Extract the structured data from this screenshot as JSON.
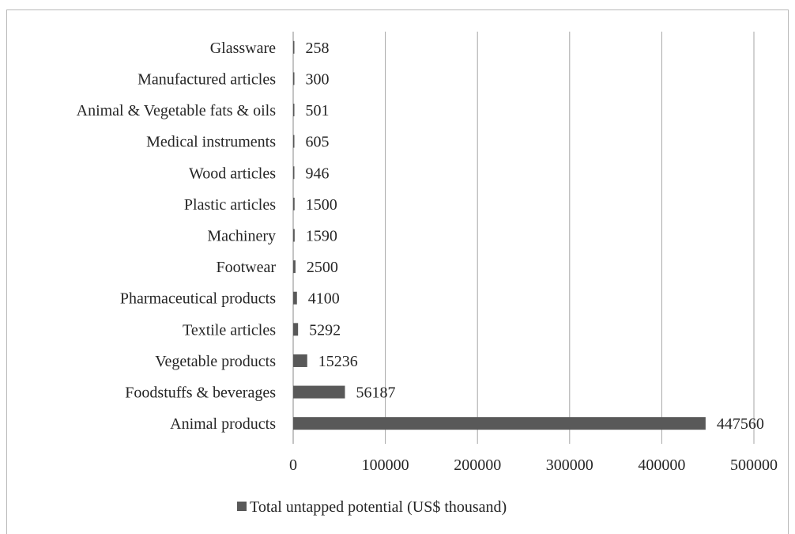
{
  "chart_data": {
    "type": "bar",
    "orientation": "horizontal",
    "categories": [
      "Animal products",
      "Foodstuffs & beverages",
      "Vegetable products",
      "Textile articles",
      "Pharmaceutical products",
      "Footwear",
      "Machinery",
      "Plastic articles",
      "Wood articles",
      "Medical instruments",
      "Animal & Vegetable fats & oils",
      "Manufactured articles",
      "Glassware"
    ],
    "series": [
      {
        "name": "Total untapped potential (US$ thousand)",
        "values": [
          447560,
          56187,
          15236,
          5292,
          4100,
          2500,
          1590,
          1500,
          946,
          605,
          501,
          300,
          258
        ],
        "color": "#595959"
      }
    ],
    "xlim": [
      0,
      500000
    ],
    "ticks": [
      0,
      100000,
      200000,
      300000,
      400000,
      500000
    ],
    "tick_labels": [
      "0",
      "100000",
      "200000",
      "300000",
      "400000",
      "500000"
    ],
    "grid": "vertical",
    "legend": "bottom",
    "title": "",
    "xlabel": "",
    "ylabel": ""
  }
}
